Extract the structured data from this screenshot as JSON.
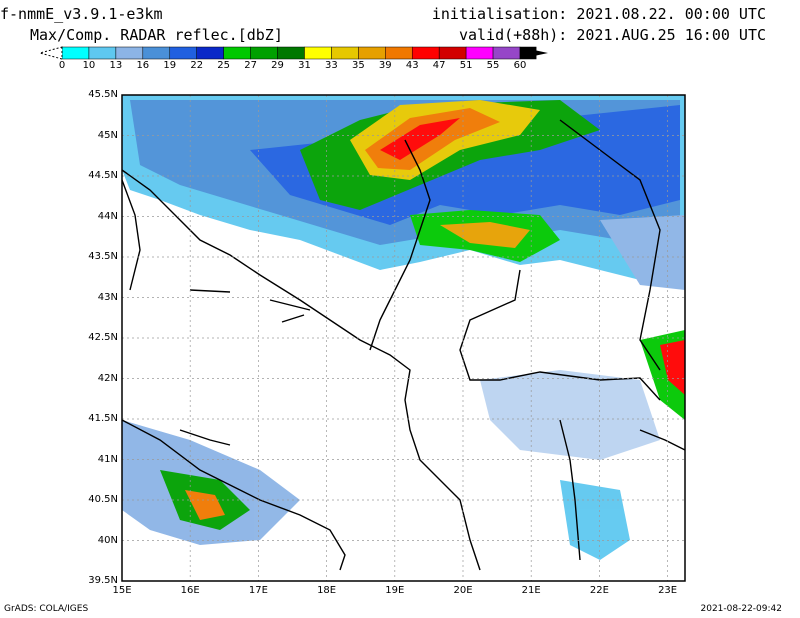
{
  "header": {
    "model": "f-nmmE_v3.9.1-e3km",
    "product": "Max/Comp. RADAR reflec.[dbZ]",
    "initialisation": "initialisation: 2021.08.22. 00:00 UTC",
    "valid": "valid(+88h): 2021.AUG.25 16:00 UTC"
  },
  "colorbar": {
    "ticks": [
      "0",
      "10",
      "13",
      "16",
      "19",
      "22",
      "25",
      "27",
      "29",
      "31",
      "33",
      "35",
      "39",
      "43",
      "47",
      "51",
      "55",
      "60"
    ],
    "colors": [
      "#00ffff",
      "#5ec8f0",
      "#8cb4e6",
      "#4a90d8",
      "#2060e0",
      "#0a28c8",
      "#00c800",
      "#00a000",
      "#007800",
      "#ffff00",
      "#e6c800",
      "#e6a000",
      "#f07800",
      "#ff0000",
      "#d20000",
      "#ff00ff",
      "#9646c8",
      "#000000"
    ]
  },
  "map": {
    "lat_labels": [
      "45.5N",
      "45N",
      "44.5N",
      "44N",
      "43.5N",
      "43N",
      "42.5N",
      "42N",
      "41.5N",
      "41N",
      "40.5N",
      "40N",
      "39.5N"
    ],
    "lon_labels": [
      "15E",
      "16E",
      "17E",
      "18E",
      "19E",
      "20E",
      "21E",
      "22E",
      "23E"
    ]
  },
  "footer": {
    "credit": "GrADS: COLA/IGES",
    "timestamp": "2021-08-22-09:42"
  }
}
